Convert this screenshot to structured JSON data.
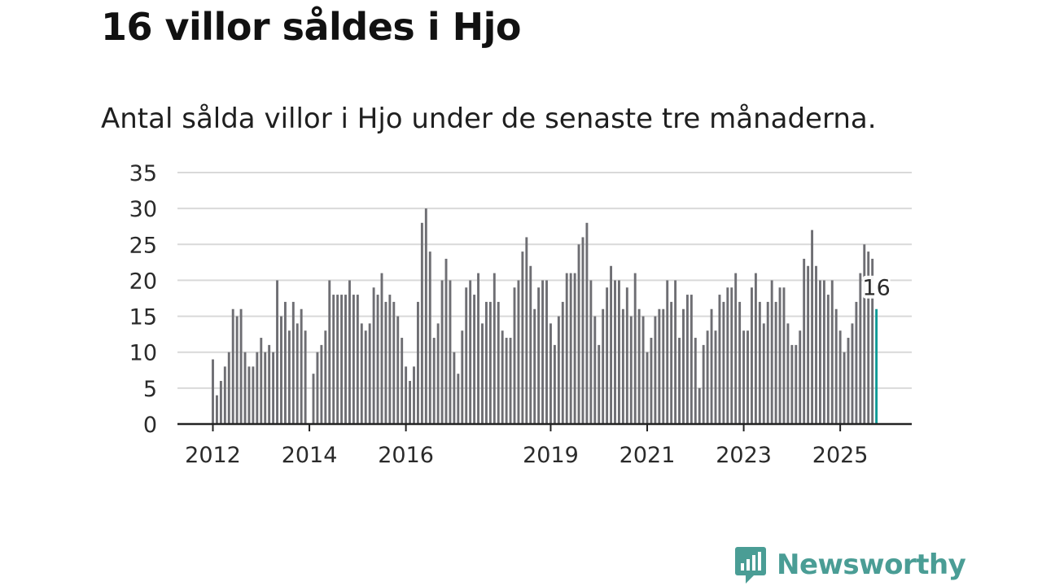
{
  "page": {
    "title": "16 villor såldes i Hjo",
    "subtitle": "Antal sålda villor i Hjo under de senaste tre månaderna."
  },
  "brand": {
    "name": "Newsworthy",
    "color": "#4a9d95"
  },
  "colors": {
    "bar": "#6e6e73",
    "highlight": "#0f9a96",
    "grid": "#d9d9d9",
    "axis": "#222222"
  },
  "chart_data": {
    "type": "bar",
    "title": "16 villor såldes i Hjo",
    "subtitle": "Antal sålda villor i Hjo under de senaste tre månaderna.",
    "xlabel": "",
    "ylabel": "",
    "ylim": [
      0,
      35
    ],
    "yticks": [
      0,
      5,
      10,
      15,
      20,
      25,
      30,
      35
    ],
    "xticks": [
      {
        "label": "2012",
        "index": 0
      },
      {
        "label": "2014",
        "index": 24
      },
      {
        "label": "2016",
        "index": 48
      },
      {
        "label": "2019",
        "index": 84
      },
      {
        "label": "2021",
        "index": 108
      },
      {
        "label": "2023",
        "index": 132
      },
      {
        "label": "2025",
        "index": 156
      }
    ],
    "values": [
      9,
      4,
      6,
      8,
      10,
      16,
      15,
      16,
      10,
      8,
      8,
      10,
      12,
      10,
      11,
      10,
      20,
      15,
      17,
      13,
      17,
      14,
      16,
      13,
      0,
      7,
      10,
      11,
      13,
      20,
      18,
      18,
      18,
      18,
      20,
      18,
      18,
      14,
      13,
      14,
      19,
      18,
      21,
      17,
      18,
      17,
      15,
      12,
      8,
      6,
      8,
      17,
      28,
      30,
      24,
      12,
      14,
      20,
      23,
      20,
      10,
      7,
      13,
      19,
      20,
      18,
      21,
      14,
      17,
      17,
      21,
      17,
      13,
      12,
      12,
      19,
      20,
      24,
      26,
      22,
      16,
      19,
      20,
      20,
      14,
      11,
      15,
      17,
      21,
      21,
      21,
      25,
      26,
      28,
      20,
      15,
      11,
      16,
      19,
      22,
      20,
      20,
      16,
      19,
      15,
      21,
      16,
      15,
      10,
      12,
      15,
      16,
      16,
      20,
      17,
      20,
      12,
      16,
      18,
      18,
      12,
      5,
      11,
      13,
      16,
      13,
      18,
      17,
      19,
      19,
      21,
      17,
      13,
      13,
      19,
      21,
      17,
      14,
      17,
      20,
      17,
      19,
      19,
      14,
      11,
      11,
      13,
      23,
      22,
      27,
      22,
      20,
      20,
      18,
      20,
      16,
      13,
      10,
      12,
      14,
      17,
      21,
      25,
      24,
      23,
      16
    ],
    "highlight": {
      "index": 165,
      "value": 16,
      "label": "16"
    }
  }
}
